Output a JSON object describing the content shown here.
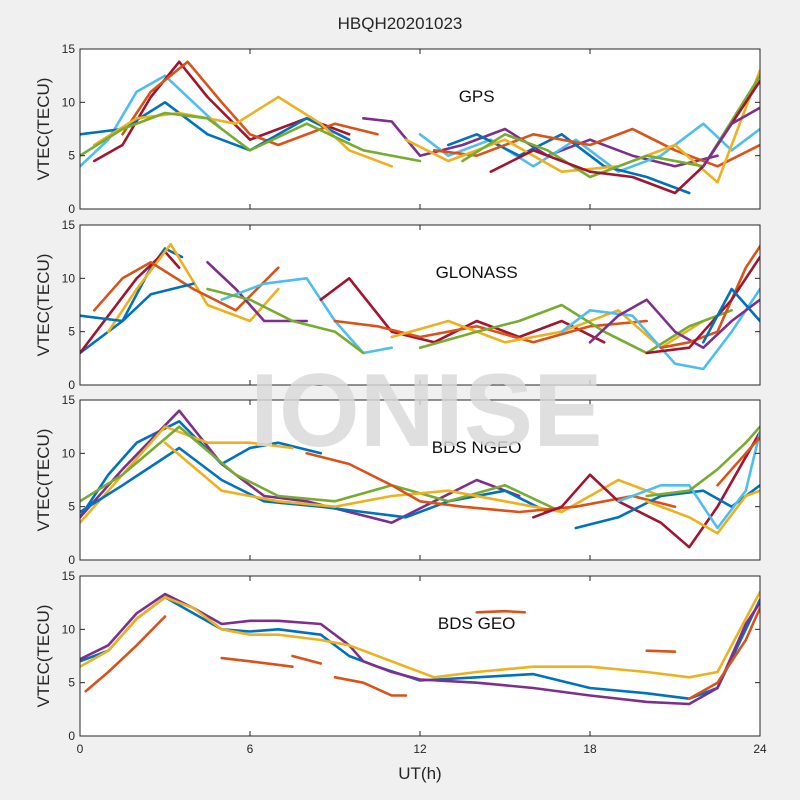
{
  "figure": {
    "title": "HBQH20201023",
    "watermark": "IONISE",
    "xlabel": "UT(h)",
    "xticks": [
      0,
      6,
      12,
      18,
      24
    ],
    "colors": [
      "#0072BD",
      "#D95319",
      "#EDB120",
      "#7E2F8E",
      "#77AC30",
      "#4DBEEE",
      "#A2142F"
    ]
  },
  "chart_data": [
    {
      "type": "line",
      "title": "GPS",
      "ylabel": "VTEC(TECU)",
      "xlim": [
        0,
        24
      ],
      "ylim": [
        0,
        15
      ],
      "yticks": [
        0,
        5,
        10,
        15
      ],
      "grid": false,
      "series": [
        {
          "color": "#4DBEEE",
          "x": [
            0,
            1,
            2,
            3,
            4,
            5
          ],
          "y": [
            4,
            6.5,
            11,
            12.5,
            10,
            7.5
          ]
        },
        {
          "color": "#A2142F",
          "x": [
            0.5,
            1.5,
            2.5,
            3.5,
            4.5,
            6,
            8,
            9.5
          ],
          "y": [
            4.5,
            6,
            10.5,
            13.8,
            10.5,
            6.5,
            8.5,
            7
          ]
        },
        {
          "color": "#D95319",
          "x": [
            1.5,
            2.5,
            3.8,
            5,
            6,
            7,
            9,
            10.5
          ],
          "y": [
            7,
            11,
            13.8,
            10,
            7,
            6,
            8,
            7
          ]
        },
        {
          "color": "#0072BD",
          "x": [
            0,
            1.5,
            3,
            4.5,
            6,
            8,
            9.5
          ],
          "y": [
            7,
            7.5,
            10,
            7,
            5.5,
            8.5,
            6.5
          ]
        },
        {
          "color": "#EDB120",
          "x": [
            0.5,
            2,
            3.5,
            5.5,
            7,
            8.5,
            9.5,
            11
          ],
          "y": [
            6,
            8.5,
            9,
            8,
            10.5,
            8,
            5.5,
            4
          ]
        },
        {
          "color": "#77AC30",
          "x": [
            0,
            1.5,
            3,
            4.5,
            6,
            8,
            10,
            12
          ],
          "y": [
            5,
            7.5,
            9,
            8.5,
            5.5,
            8,
            5.5,
            4.5
          ]
        },
        {
          "color": "#7E2F8E",
          "x": [
            10,
            11,
            12,
            13.5,
            15,
            16.5,
            18,
            19.5,
            21,
            22.5
          ],
          "y": [
            8.5,
            8.2,
            5,
            6,
            7.5,
            5,
            6.5,
            5,
            4,
            5
          ]
        },
        {
          "color": "#4DBEEE",
          "x": [
            12,
            13,
            14.5,
            16,
            17.5,
            19,
            20.5,
            22,
            23,
            24
          ],
          "y": [
            7,
            5,
            6.5,
            4,
            6.5,
            3.5,
            5,
            8,
            5.5,
            7.5
          ]
        },
        {
          "color": "#0072BD",
          "x": [
            13,
            14,
            15.5,
            17,
            18.5,
            20,
            21.5
          ],
          "y": [
            6,
            7,
            5,
            7,
            4,
            3,
            1.5
          ]
        },
        {
          "color": "#D95319",
          "x": [
            12.5,
            14,
            16,
            18,
            19.5,
            21,
            22.5,
            24
          ],
          "y": [
            5.5,
            5,
            7,
            6,
            7.5,
            5.5,
            4,
            6
          ]
        },
        {
          "color": "#EDB120",
          "x": [
            11.5,
            13,
            15,
            17,
            19,
            21,
            22.5,
            24
          ],
          "y": [
            6.5,
            4.5,
            6.5,
            3.5,
            4,
            6,
            2.5,
            13
          ]
        },
        {
          "color": "#77AC30",
          "x": [
            13.5,
            15,
            16.5,
            18,
            20,
            22,
            24
          ],
          "y": [
            4.5,
            7,
            5.5,
            3,
            5,
            4,
            12.5
          ]
        },
        {
          "color": "#A2142F",
          "x": [
            14.5,
            16,
            18,
            19.5,
            21,
            22,
            24
          ],
          "y": [
            3.5,
            5.5,
            3.5,
            3,
            1.5,
            4,
            12
          ]
        },
        {
          "color": "#7E2F8E",
          "x": [
            22,
            23,
            24
          ],
          "y": [
            4,
            8,
            9.5
          ]
        }
      ]
    },
    {
      "type": "line",
      "title": "GLONASS",
      "ylabel": "VTEC(TECU)",
      "xlim": [
        0,
        24
      ],
      "ylim": [
        0,
        15
      ],
      "yticks": [
        0,
        5,
        10,
        15
      ],
      "grid": false,
      "series": [
        {
          "color": "#0072BD",
          "x": [
            0,
            1.5,
            2.5,
            3,
            3.6
          ],
          "y": [
            3,
            6,
            11,
            12.8,
            12
          ]
        },
        {
          "color": "#A2142F",
          "x": [
            0,
            1,
            2,
            3,
            3.5
          ],
          "y": [
            3,
            6.5,
            10,
            12.5,
            11
          ]
        },
        {
          "color": "#EDB120",
          "x": [
            1,
            2,
            3.2,
            4.5,
            6,
            7
          ],
          "y": [
            5,
            9,
            13.2,
            7.5,
            6,
            9
          ]
        },
        {
          "color": "#D95319",
          "x": [
            0.5,
            1.5,
            2.5,
            4,
            5.5,
            7
          ],
          "y": [
            7,
            10,
            11.5,
            9,
            7,
            11
          ]
        },
        {
          "color": "#7E2F8E",
          "x": [
            4.5,
            5.5,
            6.5,
            8
          ],
          "y": [
            11.5,
            9,
            6,
            6
          ]
        },
        {
          "color": "#4DBEEE",
          "x": [
            5,
            6.5,
            8,
            9,
            10,
            11
          ],
          "y": [
            8,
            9.5,
            10,
            6,
            3,
            3.5
          ]
        },
        {
          "color": "#77AC30",
          "x": [
            4.5,
            6,
            7.5,
            9,
            10
          ],
          "y": [
            9,
            8,
            6,
            5,
            3
          ]
        },
        {
          "color": "#0072BD",
          "x": [
            0,
            1.5,
            2.5,
            4
          ],
          "y": [
            6.5,
            6,
            8.5,
            9.5
          ]
        },
        {
          "color": "#A2142F",
          "x": [
            8.5,
            9.5,
            11,
            12.5,
            14,
            15.5,
            17,
            18.5
          ],
          "y": [
            8,
            10,
            5,
            4,
            6,
            4.5,
            6,
            4
          ]
        },
        {
          "color": "#D95319",
          "x": [
            9,
            10.5,
            12,
            14,
            16,
            18,
            20
          ],
          "y": [
            6,
            5.5,
            4.5,
            5.5,
            4,
            5.5,
            6
          ]
        },
        {
          "color": "#EDB120",
          "x": [
            11,
            13,
            15,
            17,
            19,
            20.5,
            22
          ],
          "y": [
            4.5,
            6,
            4,
            5,
            7,
            3.5,
            6
          ]
        },
        {
          "color": "#77AC30",
          "x": [
            12,
            14,
            15.5,
            17,
            18.5,
            20,
            21.5,
            23
          ],
          "y": [
            3.5,
            5,
            6,
            7.5,
            5,
            3,
            5.5,
            7
          ]
        },
        {
          "color": "#4DBEEE",
          "x": [
            17,
            18,
            19.5,
            21,
            22,
            23,
            24
          ],
          "y": [
            5,
            7,
            6.5,
            2,
            1.5,
            5,
            9
          ]
        },
        {
          "color": "#7E2F8E",
          "x": [
            18,
            19,
            20,
            21,
            22,
            23,
            24
          ],
          "y": [
            4,
            6.5,
            8,
            5,
            3.5,
            6,
            8
          ]
        },
        {
          "color": "#D95319",
          "x": [
            20.5,
            21.5,
            22.5,
            23.5,
            24
          ],
          "y": [
            3.5,
            4,
            5,
            11,
            13
          ]
        },
        {
          "color": "#A2142F",
          "x": [
            20,
            21.5,
            23,
            24
          ],
          "y": [
            3,
            3.5,
            8,
            12
          ]
        },
        {
          "color": "#0072BD",
          "x": [
            22,
            23,
            24
          ],
          "y": [
            4,
            9,
            6
          ]
        }
      ]
    },
    {
      "type": "line",
      "title": "BDS NGEO",
      "ylabel": "VTEC(TECU)",
      "xlim": [
        0,
        24
      ],
      "ylim": [
        0,
        15
      ],
      "yticks": [
        0,
        5,
        10,
        15
      ],
      "grid": false,
      "series": [
        {
          "color": "#0072BD",
          "x": [
            0,
            1,
            2,
            3.5,
            5,
            6,
            7,
            8.5
          ],
          "y": [
            4,
            8,
            11,
            13,
            9,
            10.5,
            11,
            10
          ]
        },
        {
          "color": "#7E2F8E",
          "x": [
            0,
            1.5,
            3.5,
            5,
            6.5,
            8,
            9.5,
            11,
            12.5,
            14,
            15.5
          ],
          "y": [
            4,
            8.5,
            14,
            9,
            6,
            5.5,
            4.5,
            3.5,
            5.5,
            7.5,
            6
          ]
        },
        {
          "color": "#EDB120",
          "x": [
            0,
            1.5,
            3,
            4.5,
            6,
            7.5
          ],
          "y": [
            3.5,
            8,
            12.5,
            11,
            11,
            10.5
          ]
        },
        {
          "color": "#0072BD",
          "x": [
            0,
            1.5,
            3.5,
            5,
            6.5,
            8.5,
            10,
            11.5,
            13,
            15,
            16.5
          ],
          "y": [
            4.5,
            7,
            10.5,
            7.5,
            5.5,
            5,
            4.5,
            4,
            5.5,
            6.5,
            4.5
          ]
        },
        {
          "color": "#77AC30",
          "x": [
            0,
            1.5,
            3.5,
            5.5,
            7,
            9,
            11,
            13,
            15,
            17
          ],
          "y": [
            5.5,
            8,
            12.5,
            8,
            6,
            5.5,
            7,
            5.5,
            7,
            4.5
          ]
        },
        {
          "color": "#EDB120",
          "x": [
            3,
            5,
            7,
            9,
            11,
            13,
            15,
            17,
            19,
            20.5
          ],
          "y": [
            11,
            6.5,
            5.5,
            5,
            6,
            6.5,
            5.5,
            4.5,
            7.5,
            6
          ]
        },
        {
          "color": "#D95319",
          "x": [
            8,
            9.5,
            11,
            12,
            13.5,
            15.5,
            17.5,
            19.5,
            21
          ],
          "y": [
            10,
            9,
            7,
            5.5,
            5,
            4.5,
            5,
            6,
            5
          ]
        },
        {
          "color": "#A2142F",
          "x": [
            16,
            17,
            18,
            19,
            20.5,
            21.5,
            22.5,
            24
          ],
          "y": [
            4,
            5,
            8,
            5.5,
            3.5,
            1.2,
            5,
            12
          ]
        },
        {
          "color": "#0072BD",
          "x": [
            17.5,
            19,
            20.5,
            22,
            23,
            24
          ],
          "y": [
            3,
            4,
            6,
            6.5,
            5,
            7
          ]
        },
        {
          "color": "#4DBEEE",
          "x": [
            19,
            20.5,
            21.5,
            22.5,
            23.5,
            24
          ],
          "y": [
            5.5,
            7,
            7,
            3,
            6.5,
            12
          ]
        },
        {
          "color": "#77AC30",
          "x": [
            20,
            21.5,
            22.5,
            23.5,
            24
          ],
          "y": [
            6,
            6.5,
            8.5,
            11,
            12.5
          ]
        },
        {
          "color": "#EDB120",
          "x": [
            20,
            21.5,
            22.5,
            23.5,
            24
          ],
          "y": [
            5.5,
            4,
            2.5,
            6,
            6.5
          ]
        },
        {
          "color": "#D95319",
          "x": [
            22.5,
            23.5,
            24
          ],
          "y": [
            7,
            10,
            11.5
          ]
        }
      ]
    },
    {
      "type": "line",
      "title": "BDS GEO",
      "ylabel": "VTEC(TECU)",
      "xlim": [
        0,
        24
      ],
      "ylim": [
        0,
        15
      ],
      "yticks": [
        0,
        5,
        10,
        15
      ],
      "grid": false,
      "series": [
        {
          "color": "#0072BD",
          "x": [
            0,
            1,
            2,
            3,
            4,
            5,
            6,
            7,
            8.5,
            9.5,
            10.5,
            12,
            14,
            16,
            18,
            20,
            21.5,
            22.5,
            23.5,
            24
          ],
          "y": [
            7,
            8,
            11,
            13,
            11.5,
            10,
            9.8,
            10,
            9.5,
            7.5,
            6.5,
            5.2,
            5.5,
            5.8,
            4.5,
            4,
            3.5,
            4.5,
            10,
            12.8
          ]
        },
        {
          "color": "#7E2F8E",
          "x": [
            0,
            1,
            2,
            3,
            4,
            5,
            6,
            7,
            8.5,
            9.5,
            10,
            11,
            12,
            14,
            16,
            18,
            20,
            21.5,
            22.5,
            23.5,
            24
          ],
          "y": [
            7.2,
            8.5,
            11.5,
            13.3,
            12,
            10.5,
            10.8,
            10.8,
            10.5,
            8.5,
            7,
            6,
            5.3,
            5,
            4.5,
            3.8,
            3.2,
            3,
            4.5,
            10.5,
            12.5
          ]
        },
        {
          "color": "#EDB120",
          "x": [
            0,
            1,
            2,
            3,
            4,
            5,
            6,
            7,
            8.5,
            9.5,
            11,
            12.5,
            14,
            16,
            18,
            20,
            21.5,
            22.5,
            23.5,
            24
          ],
          "y": [
            6.5,
            8,
            11,
            13,
            12,
            10,
            9.5,
            9.5,
            9,
            8.5,
            7,
            5.5,
            6,
            6.5,
            6.5,
            6,
            5.5,
            6,
            11,
            13.5
          ]
        },
        {
          "color": "#D95319",
          "x": [
            0.2,
            1,
            2,
            3
          ],
          "y": [
            4.2,
            6,
            8.5,
            11.2
          ]
        },
        {
          "color": "#D95319",
          "x": [
            5,
            6,
            7.5
          ],
          "y": [
            7.3,
            7,
            6.5
          ]
        },
        {
          "color": "#D95319",
          "x": [
            7.5,
            8.5
          ],
          "y": [
            7.5,
            6.8
          ]
        },
        {
          "color": "#D95319",
          "x": [
            9,
            10,
            11,
            11.5
          ],
          "y": [
            5.5,
            5,
            3.8,
            3.8
          ]
        },
        {
          "color": "#D95319",
          "x": [
            14,
            15,
            15.7
          ],
          "y": [
            11.6,
            11.7,
            11.6
          ]
        },
        {
          "color": "#D95319",
          "x": [
            20,
            21
          ],
          "y": [
            8,
            7.9
          ]
        },
        {
          "color": "#D95319",
          "x": [
            21.5,
            22.5,
            23.5,
            24
          ],
          "y": [
            3.5,
            5,
            9,
            12
          ]
        }
      ]
    }
  ]
}
